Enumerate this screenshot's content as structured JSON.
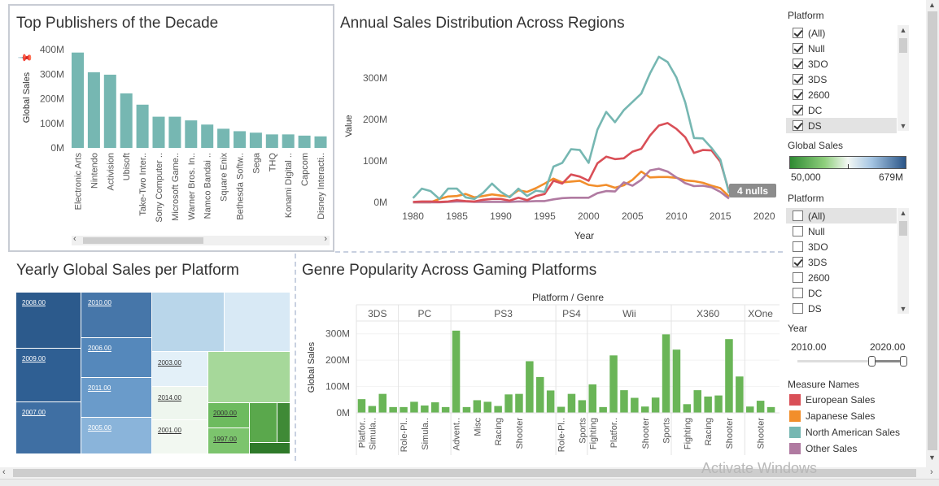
{
  "panels": {
    "publishers_title": "Top Publishers of the Decade",
    "regions_title": "Annual Sales Distribution Across Regions",
    "yearly_title": "Yearly Global Sales per Platform",
    "genre_title": "Genre Popularity Across Gaming Platforms"
  },
  "sidebar": {
    "platform_filter_1": {
      "title": "Platform",
      "items": [
        {
          "label": "(All)",
          "checked": true
        },
        {
          "label": "Null",
          "checked": true
        },
        {
          "label": "3DO",
          "checked": true
        },
        {
          "label": "3DS",
          "checked": true
        },
        {
          "label": "2600",
          "checked": true
        },
        {
          "label": "DC",
          "checked": true
        },
        {
          "label": "DS",
          "checked": true
        }
      ]
    },
    "global_sales_legend": {
      "title": "Global Sales",
      "min_label": "50,000",
      "max_label": "679M"
    },
    "platform_filter_2": {
      "title": "Platform",
      "items": [
        {
          "label": "(All)",
          "checked": false
        },
        {
          "label": "Null",
          "checked": false
        },
        {
          "label": "3DO",
          "checked": false
        },
        {
          "label": "3DS",
          "checked": true
        },
        {
          "label": "2600",
          "checked": false
        },
        {
          "label": "DC",
          "checked": false
        },
        {
          "label": "DS",
          "checked": false
        }
      ]
    },
    "year_filter": {
      "title": "Year",
      "min_label": "2010.00",
      "max_label": "2020.00"
    },
    "measure_legend": {
      "title": "Measure Names",
      "items": [
        {
          "label": "European Sales",
          "color": "#d94f57"
        },
        {
          "label": "Japanese Sales",
          "color": "#f28e2b"
        },
        {
          "label": "North American Sales",
          "color": "#76b7b2"
        },
        {
          "label": "Other Sales",
          "color": "#b07aa1"
        }
      ]
    }
  },
  "watermark": {
    "line1": "Activate Windows"
  },
  "chart_data": [
    {
      "type": "bar",
      "title": "Top Publishers of the Decade",
      "ylabel": "Global Sales",
      "ylim": [
        0,
        420
      ],
      "yticks": [
        "0M",
        "100M",
        "200M",
        "300M",
        "400M"
      ],
      "categories": [
        "Electronic Arts",
        "Nintendo",
        "Activision",
        "Ubisoft",
        "Take-Two Inter..",
        "Sony Computer ..",
        "Microsoft Game..",
        "Warner Bros. In..",
        "Namco Bandai ..",
        "Square Enix",
        "Bethesda Softw..",
        "Sega",
        "THQ",
        "Konami Digital ..",
        "Capcom",
        "Disney Interacti.."
      ],
      "values": [
        388,
        308,
        298,
        222,
        176,
        127,
        127,
        112,
        95,
        78,
        68,
        62,
        55,
        55,
        50,
        47
      ],
      "color": "#76b7b2"
    },
    {
      "type": "line",
      "title": "Annual Sales Distribution Across Regions",
      "xlabel": "Year",
      "ylabel": "Value",
      "xlim": [
        1978,
        2021
      ],
      "ylim": [
        -10,
        380
      ],
      "xticks": [
        "1980",
        "1985",
        "1990",
        "1995",
        "2000",
        "2005",
        "2010",
        "2015",
        "2020"
      ],
      "yticks": [
        "0M",
        "100M",
        "200M",
        "300M"
      ],
      "null_badge": "4 nulls",
      "x": [
        1980,
        1981,
        1982,
        1983,
        1984,
        1985,
        1986,
        1987,
        1988,
        1989,
        1990,
        1991,
        1992,
        1993,
        1994,
        1995,
        1996,
        1997,
        1998,
        1999,
        2000,
        2001,
        2002,
        2003,
        2004,
        2005,
        2006,
        2007,
        2008,
        2009,
        2010,
        2011,
        2012,
        2013,
        2014,
        2015,
        2016
      ],
      "series": [
        {
          "name": "North American Sales",
          "color": "#76b7b2",
          "values": [
            10,
            33,
            27,
            8,
            33,
            33,
            12,
            8,
            23,
            45,
            25,
            12,
            33,
            15,
            28,
            25,
            86,
            95,
            128,
            126,
            95,
            175,
            218,
            193,
            222,
            242,
            262,
            311,
            351,
            338,
            301,
            241,
            155,
            154,
            131,
            103,
            22
          ]
        },
        {
          "name": "European Sales",
          "color": "#d94f57",
          "values": [
            1,
            2,
            2,
            1,
            2,
            5,
            3,
            2,
            6,
            8,
            8,
            4,
            11,
            5,
            15,
            20,
            52,
            45,
            67,
            62,
            52,
            94,
            110,
            104,
            106,
            122,
            129,
            161,
            185,
            191,
            177,
            157,
            119,
            126,
            125,
            98,
            26
          ]
        },
        {
          "name": "Japanese Sales",
          "color": "#f28e2b",
          "values": [
            0,
            0,
            0,
            8,
            14,
            15,
            20,
            12,
            15,
            19,
            16,
            14,
            29,
            25,
            34,
            45,
            57,
            48,
            50,
            52,
            42,
            39,
            42,
            35,
            41,
            54,
            74,
            60,
            61,
            61,
            59,
            53,
            51,
            47,
            40,
            34,
            14
          ]
        },
        {
          "name": "Other Sales",
          "color": "#b07aa1",
          "values": [
            0,
            0,
            0,
            0,
            1,
            2,
            2,
            1,
            1,
            1,
            1,
            1,
            2,
            2,
            3,
            3,
            7,
            10,
            11,
            11,
            11,
            22,
            27,
            26,
            48,
            40,
            54,
            77,
            81,
            74,
            60,
            46,
            39,
            40,
            36,
            25,
            9
          ]
        }
      ]
    },
    {
      "type": "heatmap",
      "title": "Yearly Global Sales per Platform",
      "labels": [
        "2008.00",
        "2010.00",
        "2009.00",
        "2006.00",
        "2011.00",
        "2007.00",
        "2005.00",
        "2003.00",
        "2014.00",
        "2001.00",
        "2000.00",
        "1997.00"
      ]
    },
    {
      "type": "bar",
      "title": "Genre Popularity Across Gaming Platforms",
      "header": "Platform / Genre",
      "ylabel": "Global Sales",
      "ylim": [
        0,
        330
      ],
      "yticks": [
        "0M",
        "100M",
        "200M",
        "300M"
      ],
      "color": "#6ab557",
      "groups": [
        {
          "name": "3DS",
          "bars": 4,
          "values": [
            52,
            26,
            72,
            22
          ]
        },
        {
          "name": "PC",
          "bars": 5,
          "values": [
            22,
            42,
            28,
            40,
            22
          ]
        },
        {
          "name": "PS3",
          "bars": 10,
          "values": [
            312,
            22,
            48,
            42,
            26,
            70,
            72,
            196,
            136,
            85
          ]
        },
        {
          "name": "PS4",
          "bars": 3,
          "values": [
            23,
            72,
            48
          ]
        },
        {
          "name": "Wii",
          "bars": 8,
          "values": [
            108,
            22,
            218,
            86,
            57,
            24,
            58,
            298
          ]
        },
        {
          "name": "X360",
          "bars": 7,
          "values": [
            240,
            33,
            86,
            62,
            66,
            280,
            138
          ]
        },
        {
          "name": "XOne",
          "bars": 3,
          "values": [
            24,
            46,
            22
          ]
        }
      ],
      "visible_genre_labels": [
        {
          "slot": 0,
          "label": "Platfor.."
        },
        {
          "slot": 1,
          "label": "Simula.."
        },
        {
          "slot": 4,
          "label": "Role-Pl.."
        },
        {
          "slot": 6,
          "label": "Simula.."
        },
        {
          "slot": 9,
          "label": "Advent.."
        },
        {
          "slot": 11,
          "label": "Misc"
        },
        {
          "slot": 13,
          "label": "Racing"
        },
        {
          "slot": 15,
          "label": "Shooter"
        },
        {
          "slot": 19,
          "label": "Role-Pl.."
        },
        {
          "slot": 21,
          "label": "Sports"
        },
        {
          "slot": 22,
          "label": "Fighting"
        },
        {
          "slot": 24,
          "label": "Platfor.."
        },
        {
          "slot": 27,
          "label": "Shooter"
        },
        {
          "slot": 29,
          "label": "Sports"
        },
        {
          "slot": 31,
          "label": "Fighting"
        },
        {
          "slot": 33,
          "label": "Racing"
        },
        {
          "slot": 35,
          "label": "Shooter"
        },
        {
          "slot": 38,
          "label": "Shooter"
        }
      ]
    }
  ]
}
